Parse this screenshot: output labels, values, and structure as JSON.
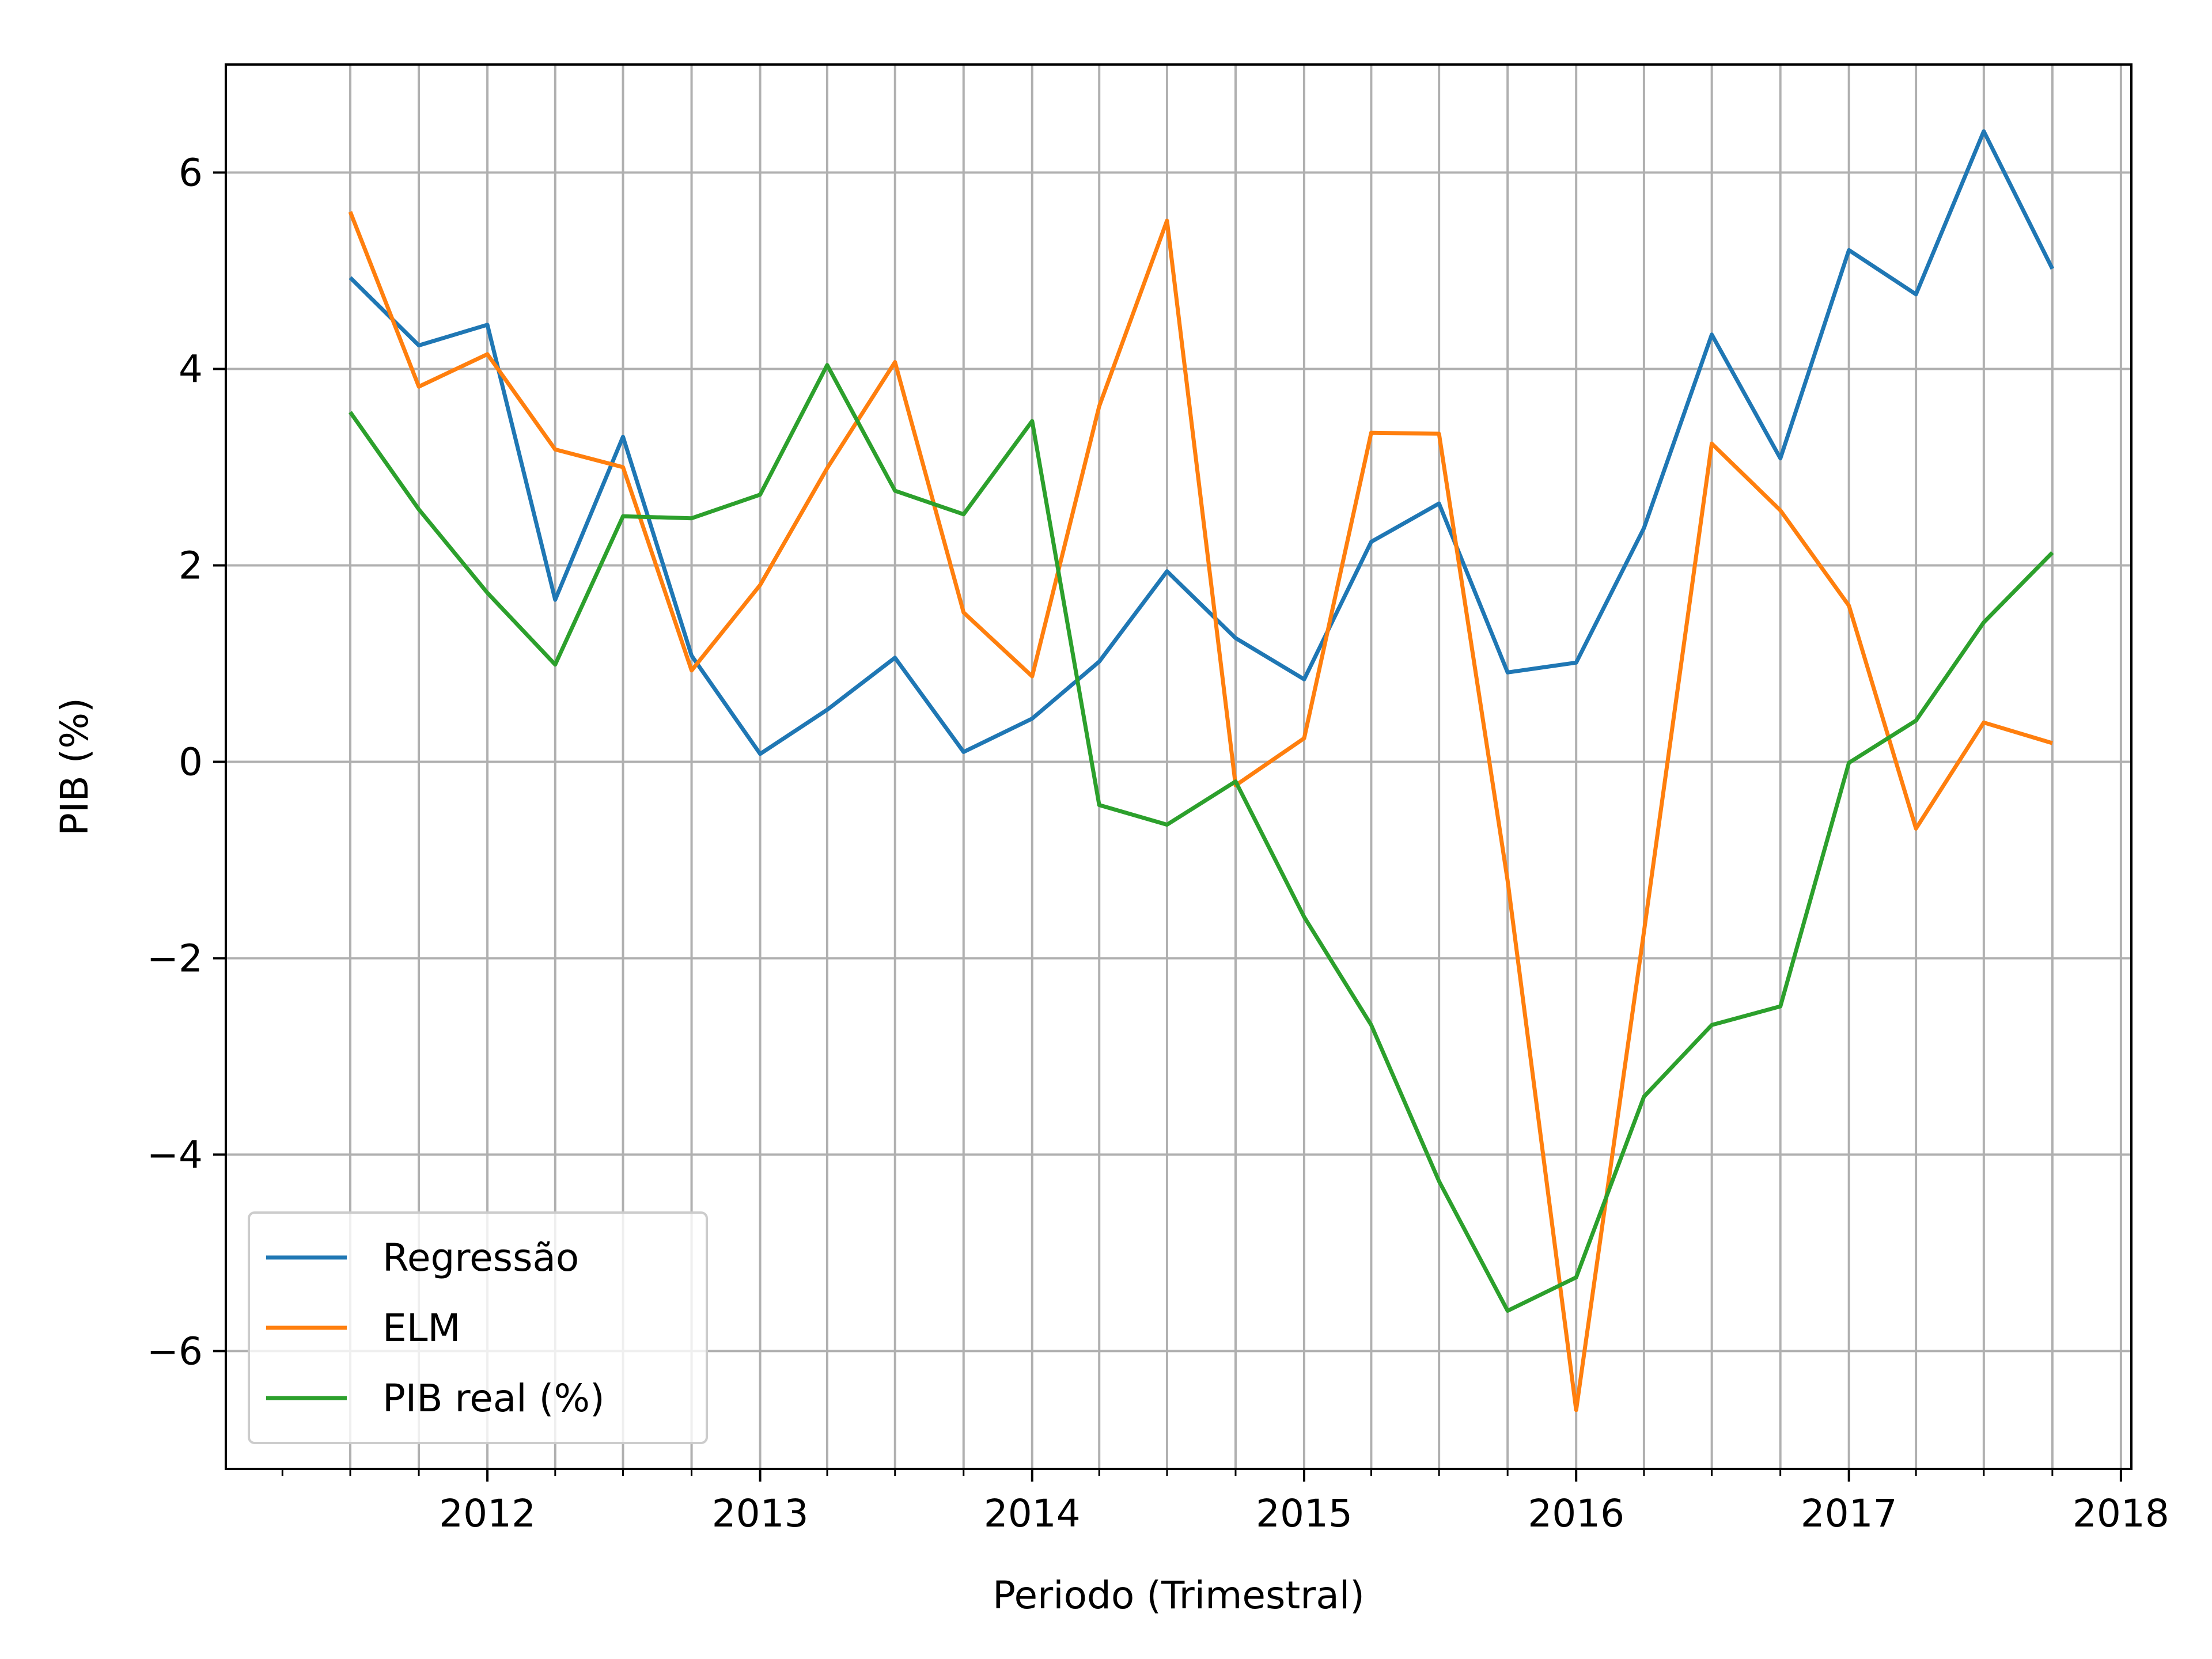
{
  "chart_data": {
    "type": "line",
    "xlabel": "Periodo (Trimestral)",
    "ylabel": "PIB (%)",
    "xlim": [
      "2011-01-15",
      "2018-01-15"
    ],
    "ylim": [
      -7.2,
      7.1
    ],
    "grid": true,
    "legend_position": "lower-left",
    "x_ticks": [
      "2012",
      "2013",
      "2014",
      "2015",
      "2016",
      "2017",
      "2018"
    ],
    "y_ticks": [
      -6,
      -4,
      -2,
      0,
      2,
      4,
      6
    ],
    "y_tick_labels": [
      "−6",
      "−4",
      "−2",
      "0",
      "2",
      "4",
      "6"
    ],
    "x": [
      "2011-07-01",
      "2011-10-01",
      "2012-01-01",
      "2012-04-01",
      "2012-07-01",
      "2012-10-01",
      "2013-01-01",
      "2013-04-01",
      "2013-07-01",
      "2013-10-01",
      "2014-01-01",
      "2014-04-01",
      "2014-07-01",
      "2014-10-01",
      "2015-01-01",
      "2015-04-01",
      "2015-07-01",
      "2015-10-01",
      "2016-01-01",
      "2016-04-01",
      "2016-07-01",
      "2016-10-01",
      "2017-01-01",
      "2017-04-01",
      "2017-07-01",
      "2017-10-01"
    ],
    "series": [
      {
        "name": "Regressão",
        "color": "#1f77b4",
        "values": [
          4.93,
          4.24,
          4.45,
          1.65,
          3.31,
          1.08,
          0.08,
          0.53,
          1.06,
          0.1,
          0.44,
          1.02,
          1.94,
          1.26,
          0.84,
          2.24,
          2.63,
          0.91,
          1.01,
          2.38,
          4.35,
          3.09,
          5.21,
          4.76,
          6.42,
          5.02
        ]
      },
      {
        "name": "ELM",
        "color": "#ff7f0e",
        "values": [
          5.6,
          3.82,
          4.15,
          3.18,
          3.0,
          0.93,
          1.8,
          2.99,
          4.07,
          1.52,
          0.87,
          3.62,
          5.51,
          -0.24,
          0.24,
          3.35,
          3.34,
          -1.21,
          -6.6,
          -1.73,
          3.24,
          2.56,
          1.59,
          -0.68,
          0.4,
          0.19
        ]
      },
      {
        "name": "PIB real (%)",
        "color": "#2ca02c",
        "values": [
          3.56,
          2.57,
          1.72,
          0.99,
          2.5,
          2.48,
          2.72,
          4.04,
          2.76,
          2.52,
          3.47,
          -0.44,
          -0.64,
          -0.2,
          -1.58,
          -2.68,
          -4.27,
          -5.59,
          -5.25,
          -3.41,
          -2.68,
          -2.49,
          -0.01,
          0.42,
          1.42,
          2.13
        ]
      }
    ]
  }
}
